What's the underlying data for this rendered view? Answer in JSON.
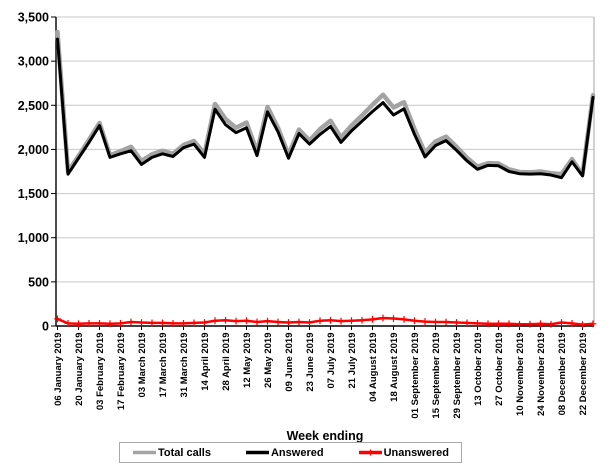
{
  "chart_data": {
    "type": "line",
    "title": "",
    "xlabel": "Week ending",
    "ylabel": "",
    "ylim": [
      0,
      3500
    ],
    "ytick_step": 500,
    "ytick_labels": [
      "0",
      "500",
      "1,000",
      "1,500",
      "2,000",
      "2,500",
      "3,000",
      "3,500"
    ],
    "grid": true,
    "legend_position": "bottom",
    "xtick_label_every": 2,
    "x": [
      "06 January 2019",
      "13 January 2019",
      "20 January 2019",
      "27 January 2019",
      "03 February 2019",
      "10 February 2019",
      "17 February 2019",
      "24 February 2019",
      "03 March 2019",
      "10 March 2019",
      "17 March 2019",
      "24 March 2019",
      "31 March 2019",
      "07 April 2019",
      "14 April 2019",
      "21 April 2019",
      "28 April 2019",
      "05 May 2019",
      "12 May 2019",
      "19 May 2019",
      "26 May 2019",
      "02 June 2019",
      "09 June 2019",
      "16 June 2019",
      "23 June 2019",
      "30 June 2019",
      "07 July 2019",
      "14 July 2019",
      "21 July 2019",
      "28 July 2019",
      "04 August 2019",
      "11 August 2019",
      "18 August 2019",
      "25 August 2019",
      "01 September 2019",
      "08 September 2019",
      "15 September 2019",
      "22 September 2019",
      "29 September 2019",
      "06 October 2019",
      "13 October 2019",
      "20 October 2019",
      "27 October 2019",
      "03 November 2019",
      "10 November 2019",
      "17 November 2019",
      "24 November 2019",
      "01 December 2019",
      "08 December 2019",
      "15 December 2019",
      "22 December 2019",
      "29 December 2019"
    ],
    "series": [
      {
        "name": "Total calls",
        "color": "#a3a3a3",
        "width": 4.5,
        "marker": "none",
        "values": [
          3330,
          1750,
          1925,
          2110,
          2300,
          1935,
          1980,
          2030,
          1870,
          1945,
          1985,
          1950,
          2050,
          2095,
          1950,
          2515,
          2345,
          2245,
          2305,
          1975,
          2480,
          2245,
          1940,
          2225,
          2100,
          2230,
          2325,
          2135,
          2270,
          2385,
          2505,
          2620,
          2475,
          2535,
          2230,
          1965,
          2090,
          2145,
          2030,
          1905,
          1805,
          1845,
          1840,
          1775,
          1745,
          1740,
          1750,
          1730,
          1720,
          1890,
          1715,
          2615
        ]
      },
      {
        "name": "Answered",
        "color": "#000000",
        "width": 3,
        "marker": "none",
        "values": [
          3250,
          1720,
          1900,
          2080,
          2270,
          1910,
          1950,
          1985,
          1830,
          1910,
          1950,
          1920,
          2020,
          2060,
          1910,
          2455,
          2280,
          2190,
          2245,
          1930,
          2425,
          2200,
          1900,
          2180,
          2060,
          2170,
          2260,
          2080,
          2210,
          2320,
          2430,
          2530,
          2390,
          2460,
          2170,
          1915,
          2045,
          2100,
          1990,
          1870,
          1775,
          1820,
          1815,
          1750,
          1725,
          1720,
          1725,
          1710,
          1680,
          1860,
          1700,
          2590
        ]
      },
      {
        "name": "Unanswered",
        "color": "#ff0000",
        "width": 2.5,
        "marker": "plus",
        "values": [
          80,
          30,
          25,
          30,
          30,
          25,
          30,
          45,
          40,
          35,
          35,
          30,
          30,
          35,
          40,
          60,
          65,
          55,
          60,
          45,
          55,
          45,
          40,
          45,
          40,
          60,
          65,
          55,
          60,
          65,
          75,
          90,
          85,
          75,
          60,
          50,
          45,
          45,
          40,
          35,
          30,
          25,
          25,
          25,
          20,
          20,
          25,
          20,
          40,
          30,
          15,
          25
        ]
      }
    ],
    "colors": {
      "gridline": "#c9c9c9",
      "plot_border": "#b3b3b3",
      "axis": "#000000",
      "background": "#ffffff"
    }
  }
}
